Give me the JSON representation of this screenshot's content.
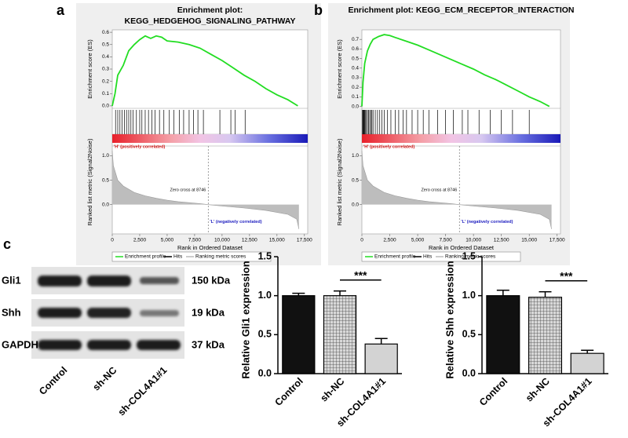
{
  "panels": [
    "a",
    "b",
    "c"
  ],
  "chart_data": [
    {
      "type": "gsea",
      "title": [
        "Enrichment plot:",
        "KEGG_HEDGEHOG_SIGNALING_PATHWAY"
      ],
      "ylabel": "Enrichment score (ES)",
      "xlabel": "Rank in Ordered Dataset",
      "color": "#22dd22",
      "x": [
        0,
        250,
        500,
        1000,
        1500,
        2000,
        2500,
        3000,
        3500,
        4000,
        4500,
        5000,
        6000,
        7000,
        8000,
        9000,
        10000,
        11000,
        12000,
        13000,
        14000,
        15000,
        16000,
        16900
      ],
      "values": [
        0,
        0.1,
        0.25,
        0.33,
        0.45,
        0.5,
        0.54,
        0.57,
        0.55,
        0.57,
        0.56,
        0.53,
        0.52,
        0.5,
        0.47,
        0.42,
        0.37,
        0.31,
        0.25,
        0.2,
        0.14,
        0.09,
        0.05,
        0
      ],
      "ylim": [
        -0.02,
        0.62
      ],
      "yticks": [
        {
          "value": 0,
          "label": "0.0"
        },
        0.1,
        0.2,
        0.3,
        0.4,
        0.5,
        0.6
      ],
      "xlim": [
        0,
        17800
      ],
      "xticks": [
        0,
        {
          "value": 2500,
          "label": "2,500"
        },
        {
          "value": 5000,
          "label": "5,000"
        },
        {
          "value": 7500,
          "label": "7,500"
        },
        {
          "value": 10000,
          "label": "10,000"
        },
        {
          "value": 12500,
          "label": "12,500"
        },
        {
          "value": 15000,
          "label": "15,000"
        },
        {
          "value": 17500,
          "label": "17,500"
        }
      ],
      "hits": [
        300,
        500,
        700,
        900,
        1100,
        1300,
        1500,
        1700,
        1900,
        2200,
        2500,
        2700,
        3000,
        3300,
        3600,
        3900,
        4300,
        4700,
        5200,
        5600,
        6100,
        6500,
        7000,
        7400,
        7800,
        8300,
        9800,
        10800,
        11200,
        12100
      ],
      "metric": {
        "ylabel": "Ranked list metric (Signal2Noise)",
        "x": [
          0,
          100,
          500,
          1000,
          2000,
          3000,
          4000,
          5000,
          6000,
          7000,
          8000,
          8746,
          10000,
          12000,
          14000,
          16000,
          16800,
          17000
        ],
        "values": [
          1.1,
          0.8,
          0.5,
          0.38,
          0.25,
          0.18,
          0.13,
          0.09,
          0.06,
          0.04,
          0.02,
          0,
          -0.03,
          -0.07,
          -0.12,
          -0.2,
          -0.3,
          -0.5
        ],
        "ylim": [
          -0.6,
          1.2
        ],
        "yticks": [
          {
            "value": 0,
            "label": "0.0"
          },
          0.5,
          {
            "value": 1,
            "label": "1.0"
          }
        ]
      },
      "zero_cross": 8746,
      "annotations": {
        "high": "'H' (positively correlated)",
        "zero": "Zero cross at 8746",
        "low": "'L' (negatively correlated)"
      },
      "legend": [
        "Enrichment profile",
        "Hits",
        "Ranking metric scores"
      ]
    },
    {
      "type": "gsea",
      "title": [
        "Enrichment plot: KEGG_ECM_RECEPTOR_INTERACTION"
      ],
      "ylabel": "Enrichment score (ES)",
      "xlabel": "Rank in Ordered Dataset",
      "color": "#22dd22",
      "x": [
        0,
        100,
        250,
        500,
        750,
        1000,
        1500,
        2000,
        2500,
        3000,
        4000,
        5000,
        6000,
        7000,
        8000,
        9000,
        10000,
        11000,
        12000,
        13000,
        14000,
        15000,
        16000,
        16800
      ],
      "values": [
        0,
        0.25,
        0.45,
        0.58,
        0.65,
        0.7,
        0.73,
        0.75,
        0.74,
        0.72,
        0.68,
        0.64,
        0.59,
        0.54,
        0.49,
        0.44,
        0.39,
        0.33,
        0.28,
        0.22,
        0.16,
        0.1,
        0.05,
        0
      ],
      "ylim": [
        -0.02,
        0.8
      ],
      "yticks": [
        {
          "value": 0,
          "label": "0.0"
        },
        0.1,
        0.2,
        0.3,
        0.4,
        0.5,
        0.6,
        0.7
      ],
      "xlim": [
        0,
        17800
      ],
      "xticks": [
        0,
        {
          "value": 2500,
          "label": "2,500"
        },
        {
          "value": 5000,
          "label": "5,000"
        },
        {
          "value": 7500,
          "label": "7,500"
        },
        {
          "value": 10000,
          "label": "10,000"
        },
        {
          "value": 12500,
          "label": "12,500"
        },
        {
          "value": 15000,
          "label": "15,000"
        },
        {
          "value": 17500,
          "label": "17,500"
        }
      ],
      "hits": [
        50,
        100,
        150,
        200,
        250,
        300,
        400,
        500,
        600,
        700,
        800,
        900,
        1000,
        1200,
        1400,
        1600,
        1800,
        2000,
        2300,
        2600,
        3000,
        3300,
        3700,
        4000,
        4500,
        5000,
        5500,
        6000,
        6800,
        7500,
        8200,
        9000,
        9500,
        10500,
        11500,
        12500,
        13500,
        15000
      ],
      "metric": {
        "ylabel": "Ranked list metric (Signal2Noise)",
        "x": [
          0,
          100,
          500,
          1000,
          2000,
          3000,
          4000,
          5000,
          6000,
          7000,
          8000,
          8746,
          10000,
          12000,
          14000,
          16000,
          16800,
          17000
        ],
        "values": [
          1.1,
          0.8,
          0.5,
          0.38,
          0.25,
          0.18,
          0.13,
          0.09,
          0.06,
          0.04,
          0.02,
          0,
          -0.03,
          -0.07,
          -0.12,
          -0.2,
          -0.3,
          -0.5
        ],
        "ylim": [
          -0.6,
          1.2
        ],
        "yticks": [
          {
            "value": 0,
            "label": "0.0"
          },
          0.5,
          {
            "value": 1,
            "label": "1.0"
          }
        ]
      },
      "zero_cross": 8746,
      "annotations": {
        "high": "'H' (positively correlated)",
        "zero": "Zero cross at 8746",
        "low": "'L' (negatively correlated)"
      },
      "legend": [
        "Enrichment profile",
        "Hits",
        "Ranking metric scores"
      ]
    },
    {
      "type": "bar",
      "ylabel": "Relative Gli1 expression",
      "categories": [
        "Control",
        "sh-NC",
        "sh-COL4A1#1"
      ],
      "values": [
        1.0,
        1.0,
        0.38
      ],
      "errors": [
        0.03,
        0.06,
        0.07
      ],
      "colors": [
        "#111111",
        "#9a9a9a",
        "#d3d3d3"
      ],
      "hatch": [
        false,
        true,
        false
      ],
      "ylim": [
        0,
        1.5
      ],
      "yticks": [
        {
          "value": 0,
          "label": "0.0"
        },
        0.5,
        {
          "value": 1,
          "label": "1.0"
        },
        1.5
      ],
      "significance": "***"
    },
    {
      "type": "bar",
      "ylabel": "Relative Shh expression",
      "categories": [
        "Control",
        "sh-NC",
        "sh-COL4A1#1"
      ],
      "values": [
        1.0,
        0.98,
        0.26
      ],
      "errors": [
        0.07,
        0.07,
        0.04
      ],
      "colors": [
        "#111111",
        "#9a9a9a",
        "#d3d3d3"
      ],
      "hatch": [
        false,
        true,
        false
      ],
      "ylim": [
        0,
        1.5
      ],
      "yticks": [
        {
          "value": 0,
          "label": "0.0"
        },
        0.5,
        {
          "value": 1,
          "label": "1.0"
        },
        1.5
      ],
      "significance": "***"
    }
  ],
  "western_blot": {
    "rows": [
      {
        "label": "Gli1",
        "size": "150 kDa"
      },
      {
        "label": "Shh",
        "size": "19 kDa"
      },
      {
        "label": "GAPDH",
        "size": "37 kDa"
      }
    ],
    "categories": [
      "Control",
      "sh-NC",
      "sh-COL4A1#1"
    ]
  }
}
